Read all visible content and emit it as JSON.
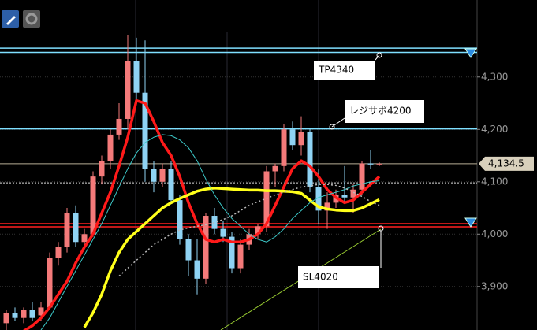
{
  "chart_data": {
    "type": "candlestick",
    "ylim": [
      3817,
      4447
    ],
    "yticks": [
      {
        "value": 3900,
        "label": "3,900"
      },
      {
        "value": 4000,
        "label": "4,000"
      },
      {
        "value": 4100,
        "label": "4,100"
      },
      {
        "value": 4200,
        "label": "4,200"
      },
      {
        "value": 4300,
        "label": "4,300"
      }
    ],
    "grid": true,
    "up_color": "#f47a7a",
    "down_color": "#8fd3f4",
    "open": [
      3830,
      3850,
      3840,
      3855,
      3845,
      3860,
      3955,
      3975,
      4040,
      3985,
      4000,
      4110,
      4140,
      4190,
      4220,
      4330,
      4270,
      4125,
      4100,
      4125,
      4065,
      3990,
      3950,
      3915,
      4035,
      4010,
      3995,
      3935,
      3980,
      4000,
      4015,
      4120,
      4130,
      4200,
      4170,
      4195,
      4090,
      4045,
      4060,
      4075,
      4070,
      4085,
      4135,
      4133
    ],
    "high": [
      3855,
      3860,
      3860,
      3870,
      3870,
      3965,
      3985,
      4050,
      4055,
      4010,
      4120,
      4150,
      4200,
      4250,
      4380,
      4375,
      4370,
      4140,
      4135,
      4140,
      4075,
      4000,
      3990,
      4040,
      4050,
      4025,
      4005,
      3990,
      4010,
      4020,
      4130,
      4135,
      4210,
      4215,
      4225,
      4200,
      4125,
      4080,
      4085,
      4130,
      4095,
      4140,
      4160,
      4137
    ],
    "low": [
      3815,
      3835,
      3830,
      3835,
      3835,
      3855,
      3940,
      3965,
      3975,
      3970,
      3995,
      4095,
      4125,
      4180,
      4200,
      4250,
      4100,
      4080,
      4090,
      4060,
      3980,
      3920,
      3885,
      3905,
      4000,
      3985,
      3925,
      3925,
      3970,
      3990,
      4005,
      4090,
      4120,
      4160,
      4150,
      4080,
      4020,
      4010,
      4050,
      4060,
      4040,
      4075,
      4125,
      4130
    ],
    "close": [
      3850,
      3840,
      3855,
      3840,
      3860,
      3955,
      3975,
      4040,
      3985,
      4000,
      4110,
      4140,
      4190,
      4220,
      4330,
      4270,
      4125,
      4100,
      4125,
      4065,
      3990,
      3950,
      3915,
      4035,
      4010,
      3995,
      3935,
      3980,
      4000,
      4015,
      4120,
      4130,
      4200,
      4170,
      4195,
      4090,
      4045,
      4060,
      4075,
      4070,
      4085,
      4135,
      4133,
      4134.5
    ],
    "series": [
      {
        "color": "#ff1a1a",
        "width": 3.5,
        "values": [
          null,
          null,
          3815,
          3825,
          3840,
          3860,
          3885,
          3910,
          3945,
          3975,
          4000,
          4040,
          4080,
          4130,
          4185,
          4255,
          4250,
          4215,
          4175,
          4150,
          4110,
          4060,
          4020,
          3990,
          3985,
          3990,
          3985,
          3985,
          3990,
          4000,
          4020,
          4055,
          4090,
          4125,
          4140,
          4130,
          4110,
          4085,
          4070,
          4060,
          4065,
          4080,
          4095,
          4110
        ]
      },
      {
        "color": "#ffff1a",
        "width": 3.5,
        "values": [
          null,
          null,
          null,
          null,
          null,
          null,
          null,
          null,
          null,
          3822,
          3850,
          3885,
          3930,
          3965,
          3990,
          4005,
          4020,
          4035,
          4050,
          4060,
          4068,
          4075,
          4082,
          4086,
          4088,
          4087,
          4086,
          4085,
          4084,
          4084,
          4083,
          4083,
          4082,
          4081,
          4078,
          4065,
          4052,
          4048,
          4046,
          4045,
          4045,
          4050,
          4058,
          4066
        ]
      },
      {
        "color": "#3cc8c8",
        "width": 1,
        "values": [
          null,
          null,
          null,
          null,
          3817,
          3840,
          3870,
          3900,
          3930,
          3960,
          3990,
          4020,
          4055,
          4090,
          4125,
          4155,
          4175,
          4185,
          4190,
          4188,
          4180,
          4165,
          4140,
          4105,
          4075,
          4050,
          4030,
          4015,
          4000,
          3990,
          3985,
          3995,
          4010,
          4030,
          4045,
          4060,
          4070,
          4075,
          4080,
          4085,
          4092,
          4096,
          4100,
          4102
        ]
      },
      {
        "color": "#bbbbbb",
        "width": 1.5,
        "dash": "2,3",
        "values": [
          null,
          null,
          null,
          null,
          null,
          null,
          null,
          null,
          null,
          null,
          null,
          null,
          null,
          3920,
          3935,
          3950,
          3965,
          3980,
          3990,
          4000,
          4008,
          4012,
          4015,
          4018,
          4022,
          4028,
          4035,
          4045,
          4055,
          4062,
          4068,
          4075,
          4080,
          4085,
          4090,
          4092,
          4095,
          4095,
          4093,
          4088,
          4080,
          4072,
          4062,
          4055
        ]
      }
    ],
    "hlines": [
      {
        "value": 4355,
        "color": "#7fdfff",
        "width": 1.5
      },
      {
        "value": 4347,
        "color": "#7fdfff",
        "width": 1.5
      },
      {
        "value": 4201,
        "color": "#7fdfff",
        "width": 1.5
      },
      {
        "value": 4020,
        "color": "#ff2020",
        "width": 1.5
      },
      {
        "value": 4014,
        "color": "#ff2020",
        "width": 1.5
      },
      {
        "value": 4134.5,
        "color": "#b8ae96",
        "width": 1
      },
      {
        "value": 4098,
        "color": "#dddddd",
        "width": 1,
        "dash": "2,2"
      }
    ],
    "last_price": {
      "value": 4134.5,
      "label": "4,134.5"
    },
    "annotations": [
      {
        "text": "TP4340"
      },
      {
        "text": "レジサポ4200"
      },
      {
        "text": "SL4020"
      }
    ]
  }
}
